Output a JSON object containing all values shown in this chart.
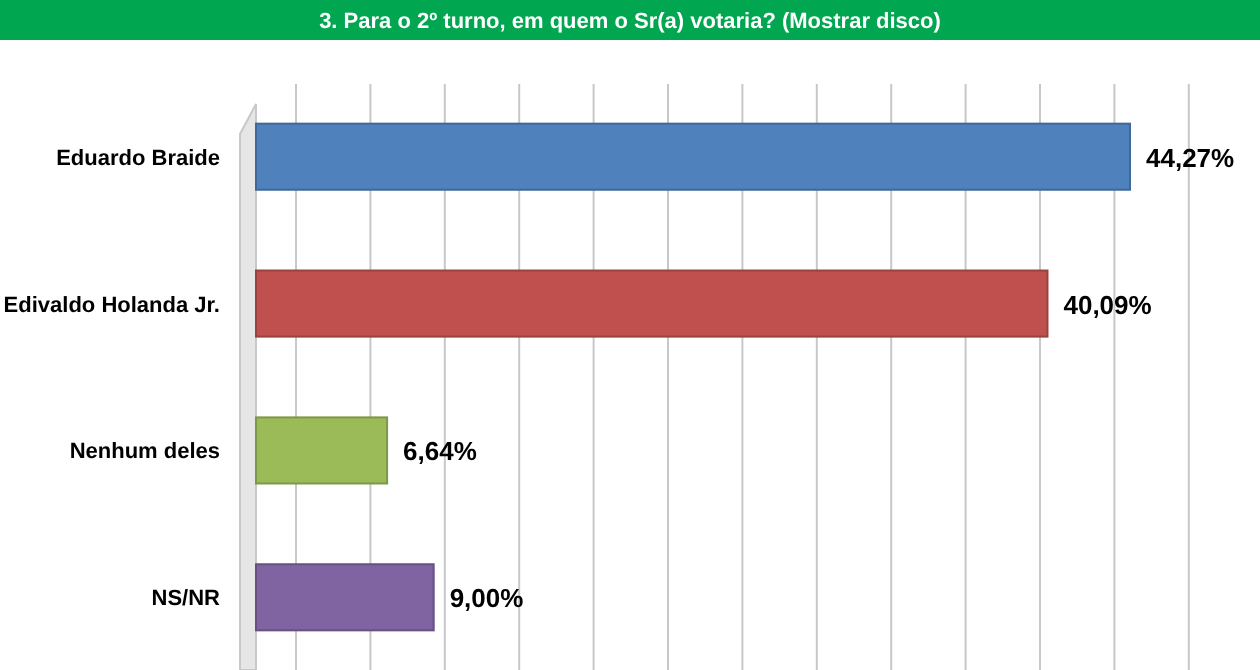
{
  "chart_data": {
    "type": "bar",
    "orientation": "horizontal",
    "title": "3. Para o 2º turno, em quem o Sr(a) votaria? (Mostrar disco)",
    "categories": [
      "Eduardo Braide",
      "Edivaldo Holanda Jr.",
      "Nenhum deles",
      "NS/NR"
    ],
    "values": [
      44.27,
      40.09,
      6.64,
      9.0
    ],
    "colors": [
      "#4f81bd",
      "#c0504d",
      "#9bbb59",
      "#8064a2"
    ],
    "value_labels": [
      "44,27%",
      "40,09%",
      "6,64%",
      "9,00%"
    ],
    "grid": "x",
    "tick_labels": "y"
  }
}
